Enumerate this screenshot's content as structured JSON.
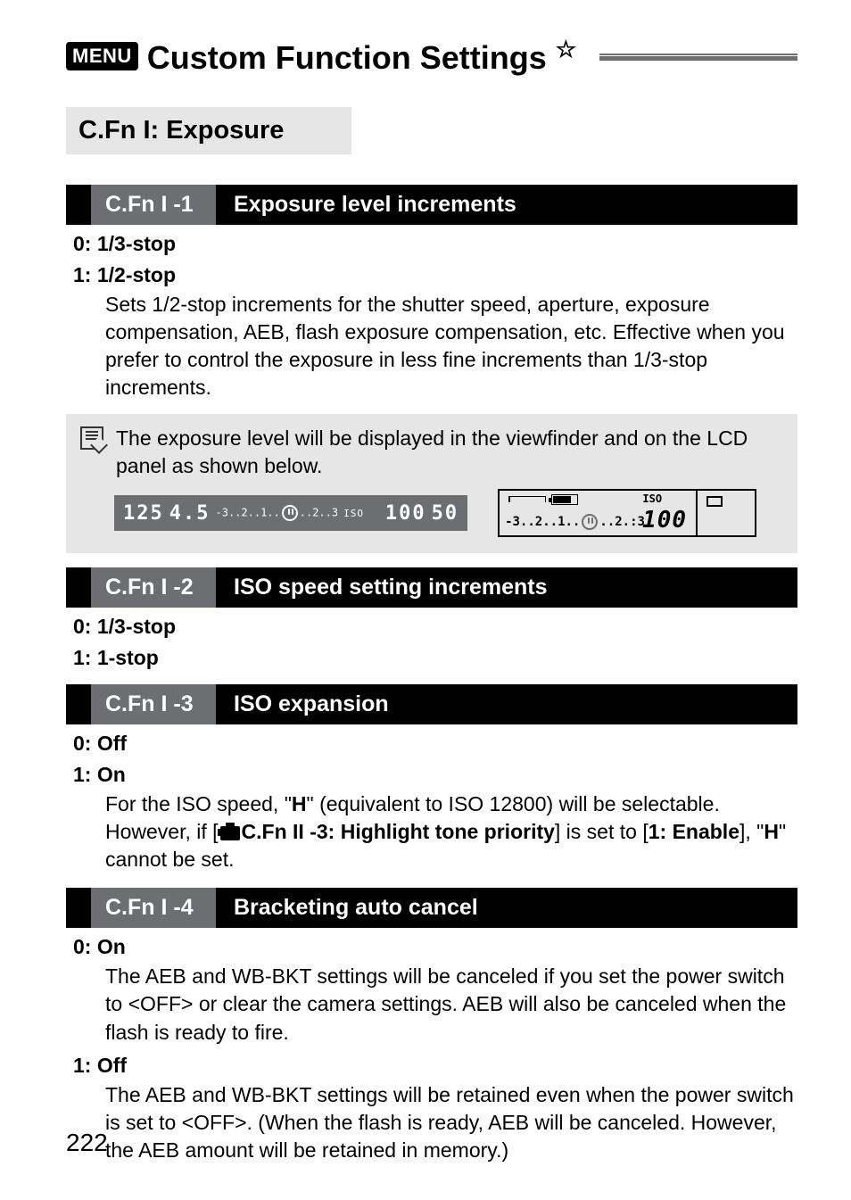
{
  "page": {
    "menu_badge": "MENU",
    "title": "Custom Function Settings",
    "star": "☆",
    "section_heading": "C.Fn I: Exposure",
    "page_number": "222"
  },
  "fn1": {
    "code": "C.Fn I -1",
    "title": "Exposure level increments",
    "opt0": "0: 1/3-stop",
    "opt1": "1: 1/2-stop",
    "body": "Sets 1/2-stop increments for the shutter speed, aperture, exposure compensation, AEB, flash exposure compensation, etc. Effective when you prefer to control the exposure in less fine increments than 1/3-stop increments."
  },
  "note": {
    "text": "The exposure level will be displayed in the viewfinder and on the LCD panel as shown below.",
    "lcd": {
      "shutter": "125",
      "aperture": "4.5",
      "scale_pre": "-3..2..1..",
      "scale_post": "..2..3",
      "iso_label": "ISO",
      "iso_val": "100",
      "shots": "50"
    },
    "panel": {
      "iso_label": "ISO",
      "scale_pre": "-3..2..1..",
      "scale_post": "..2.:3",
      "iso_val": "100"
    }
  },
  "fn2": {
    "code": "C.Fn I -2",
    "title": "ISO speed setting increments",
    "opt0": "0: 1/3-stop",
    "opt1": "1: 1-stop"
  },
  "fn3": {
    "code": "C.Fn I -3",
    "title": "ISO expansion",
    "opt0": "0: Off",
    "opt1": "1: On",
    "body_a": "For the ISO speed, \"",
    "body_b": "\" (equivalent to ISO 12800) will be selectable. However, if [",
    "body_c": "C.Fn II -3: Highlight tone priority",
    "body_d": "] is set to [",
    "body_e": "1: Enable",
    "body_f": "], \"",
    "body_g": "\" cannot be set.",
    "H": "H"
  },
  "fn4": {
    "code": "C.Fn I -4",
    "title": "Bracketing auto cancel",
    "opt0": "0: On",
    "body0_a": "The AEB and WB-BKT settings will be canceled if you set the power switch to <",
    "body0_b": "> or clear the camera settings. AEB will also be canceled when the flash is ready to fire.",
    "opt1": "1: Off",
    "body1_a": "The AEB and WB-BKT settings will be retained even when the power switch is set to <",
    "body1_b": ">. (When the flash is ready, AEB will be canceled. However, the AEB amount will be retained in memory.)",
    "off_label": "OFF"
  }
}
